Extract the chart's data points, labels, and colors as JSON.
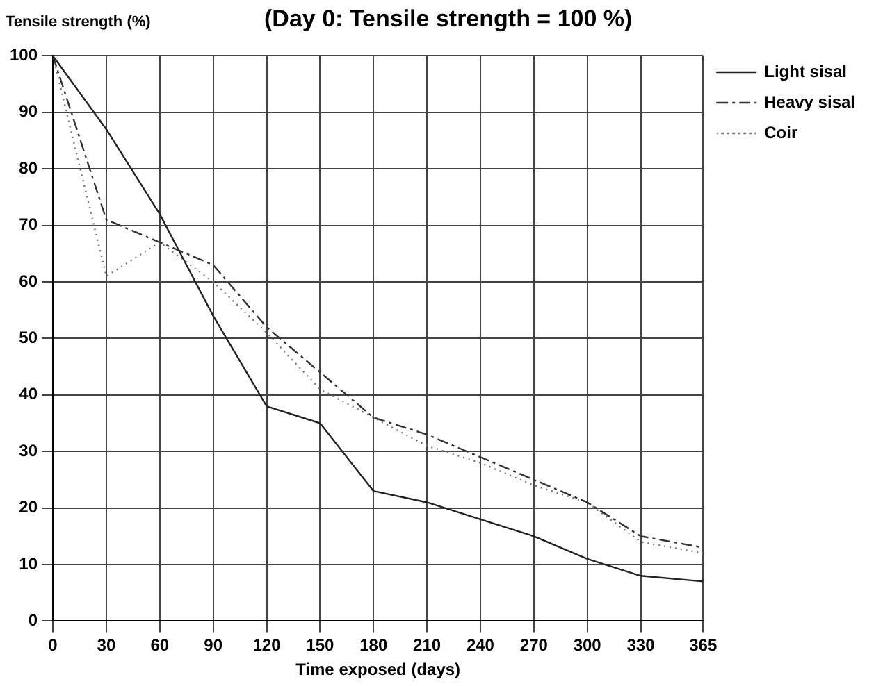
{
  "chart_data": {
    "type": "line",
    "title": "(Day 0: Tensile strength = 100 %)",
    "ylabel": "Tensile strength (%)",
    "xlabel": "Time exposed (days)",
    "x": [
      0,
      30,
      60,
      90,
      120,
      150,
      180,
      210,
      240,
      270,
      300,
      330,
      365
    ],
    "series": [
      {
        "name": "Light sisal",
        "color": "#222222",
        "line_style": "solid",
        "values": [
          100,
          87,
          72,
          54,
          38,
          35,
          23,
          21,
          18,
          15,
          11,
          8,
          7
        ]
      },
      {
        "name": "Heavy sisal",
        "color": "#333333",
        "line_style": "dashed",
        "values": [
          100,
          71,
          67,
          63,
          52,
          44,
          36,
          33,
          29,
          25,
          21,
          15,
          13
        ]
      },
      {
        "name": "Coir",
        "color": "#777777",
        "line_style": "dotted",
        "values": [
          100,
          61,
          67,
          60,
          51,
          41,
          36,
          31,
          28,
          24,
          21,
          14,
          12
        ]
      }
    ],
    "xlim": [
      0,
      365
    ],
    "xticks": [
      0,
      30,
      60,
      90,
      120,
      150,
      180,
      210,
      240,
      270,
      300,
      330,
      365
    ],
    "ylim": [
      0,
      100
    ],
    "yticks": [
      0,
      10,
      20,
      30,
      40,
      50,
      60,
      70,
      80,
      90,
      100
    ],
    "grid": true,
    "legend": "right",
    "marker": "none"
  }
}
